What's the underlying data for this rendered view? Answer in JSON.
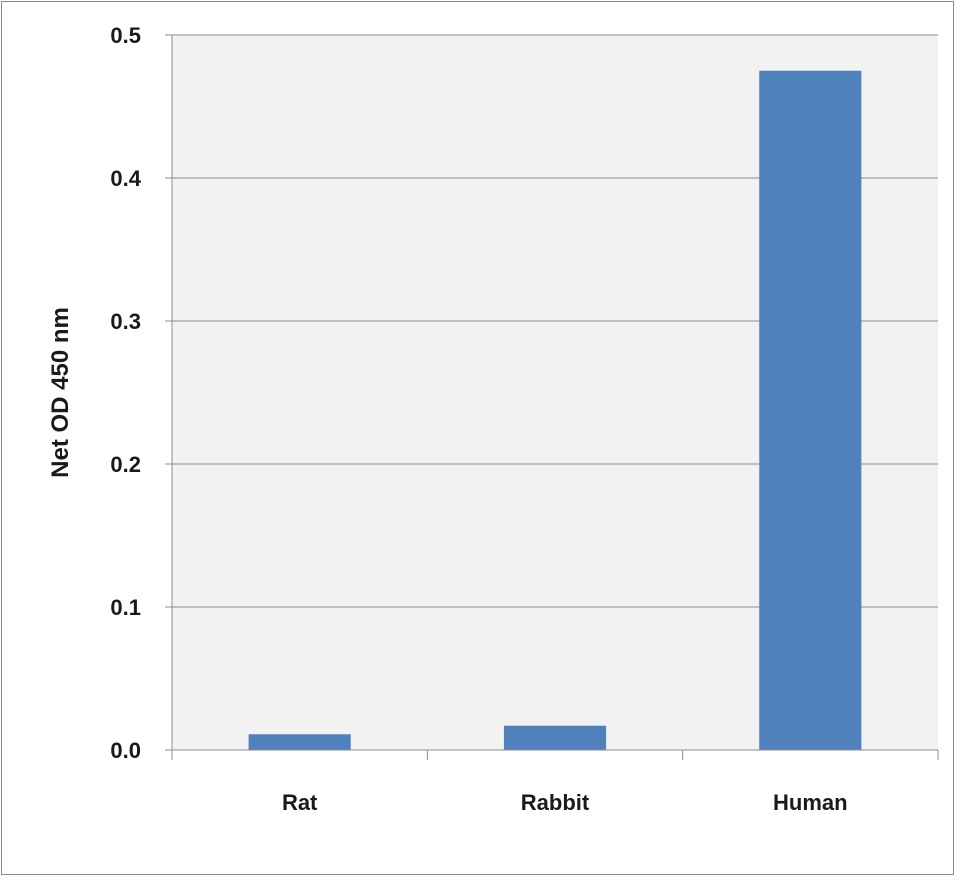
{
  "chart_data": {
    "type": "bar",
    "categories": [
      "Rat",
      "Rabbit",
      "Human"
    ],
    "values": [
      0.011,
      0.017,
      0.475
    ],
    "title": "",
    "xlabel": "",
    "ylabel": "Net OD 450 nm",
    "ylim": [
      0,
      0.5
    ],
    "yticks": [
      "0.0",
      "0.1",
      "0.2",
      "0.3",
      "0.4",
      "0.5"
    ],
    "grid": true,
    "legend": "none",
    "colors": {
      "bar": "#4f81bd",
      "plot_background": "#f2f2f2",
      "gridline": "#8c8c8c",
      "axis": "#8c8c8c"
    }
  }
}
